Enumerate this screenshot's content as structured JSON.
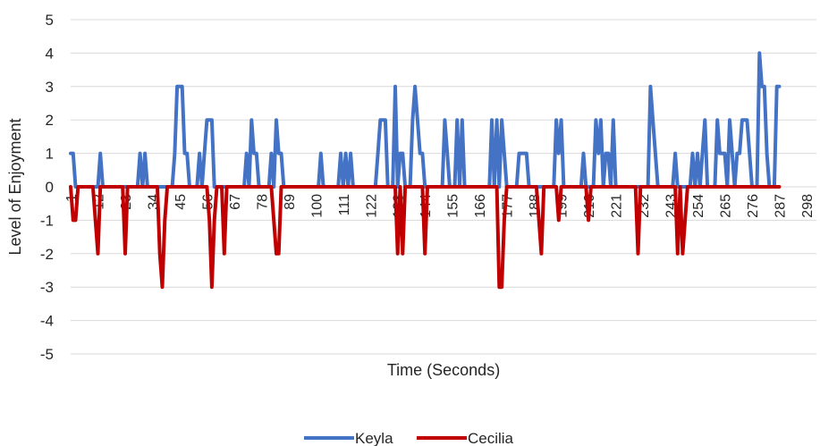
{
  "chart_data": {
    "type": "line",
    "xlabel": "Time (Seconds)",
    "ylabel": "Level of Enjoyment",
    "ylim": [
      -5,
      5
    ],
    "yticks": [
      5,
      4,
      3,
      2,
      1,
      0,
      -1,
      -2,
      -3,
      -4,
      -5
    ],
    "xlim": [
      1,
      302
    ],
    "xtick_labels": [
      1,
      12,
      23,
      34,
      45,
      56,
      67,
      78,
      89,
      100,
      111,
      122,
      133,
      144,
      155,
      166,
      177,
      188,
      199,
      210,
      221,
      232,
      243,
      254,
      265,
      276,
      287,
      298
    ],
    "grid": true,
    "legend_position": "bottom",
    "series": [
      {
        "name": "Keyla",
        "color": "#4472C4",
        "points": [
          [
            1,
            1
          ],
          [
            2,
            1
          ],
          [
            3,
            0
          ],
          [
            12,
            0
          ],
          [
            13,
            1
          ],
          [
            14,
            0
          ],
          [
            28,
            0
          ],
          [
            29,
            1
          ],
          [
            30,
            0
          ],
          [
            31,
            1
          ],
          [
            32,
            0
          ],
          [
            42,
            0
          ],
          [
            43,
            1
          ],
          [
            44,
            3
          ],
          [
            45,
            3
          ],
          [
            46,
            3
          ],
          [
            47,
            1
          ],
          [
            48,
            1
          ],
          [
            49,
            0
          ],
          [
            52,
            0
          ],
          [
            53,
            1
          ],
          [
            54,
            0
          ],
          [
            55,
            1
          ],
          [
            56,
            2
          ],
          [
            57,
            2
          ],
          [
            58,
            2
          ],
          [
            59,
            0
          ],
          [
            71,
            0
          ],
          [
            72,
            1
          ],
          [
            73,
            0
          ],
          [
            74,
            2
          ],
          [
            75,
            1
          ],
          [
            76,
            1
          ],
          [
            77,
            0
          ],
          [
            81,
            0
          ],
          [
            82,
            1
          ],
          [
            83,
            0
          ],
          [
            84,
            2
          ],
          [
            85,
            1
          ],
          [
            86,
            1
          ],
          [
            87,
            0
          ],
          [
            101,
            0
          ],
          [
            102,
            1
          ],
          [
            103,
            0
          ],
          [
            109,
            0
          ],
          [
            110,
            1
          ],
          [
            111,
            0
          ],
          [
            112,
            1
          ],
          [
            113,
            0
          ],
          [
            114,
            1
          ],
          [
            115,
            0
          ],
          [
            124,
            0
          ],
          [
            125,
            1
          ],
          [
            126,
            2
          ],
          [
            127,
            2
          ],
          [
            128,
            2
          ],
          [
            129,
            0
          ],
          [
            131,
            0
          ],
          [
            132,
            3
          ],
          [
            133,
            0
          ],
          [
            134,
            1
          ],
          [
            135,
            1
          ],
          [
            136,
            0
          ],
          [
            138,
            0
          ],
          [
            139,
            2
          ],
          [
            140,
            3
          ],
          [
            141,
            2
          ],
          [
            142,
            1
          ],
          [
            143,
            1
          ],
          [
            144,
            0
          ],
          [
            151,
            0
          ],
          [
            152,
            2
          ],
          [
            153,
            1
          ],
          [
            154,
            0
          ],
          [
            156,
            0
          ],
          [
            157,
            2
          ],
          [
            158,
            0
          ],
          [
            159,
            2
          ],
          [
            160,
            0
          ],
          [
            170,
            0
          ],
          [
            171,
            2
          ],
          [
            172,
            0
          ],
          [
            173,
            2
          ],
          [
            174,
            0
          ],
          [
            175,
            2
          ],
          [
            176,
            1
          ],
          [
            177,
            0
          ],
          [
            181,
            0
          ],
          [
            182,
            1
          ],
          [
            183,
            1
          ],
          [
            184,
            1
          ],
          [
            185,
            1
          ],
          [
            186,
            0
          ],
          [
            196,
            0
          ],
          [
            197,
            2
          ],
          [
            198,
            1
          ],
          [
            199,
            2
          ],
          [
            200,
            0
          ],
          [
            207,
            0
          ],
          [
            208,
            1
          ],
          [
            209,
            0
          ],
          [
            212,
            0
          ],
          [
            213,
            2
          ],
          [
            214,
            1
          ],
          [
            215,
            2
          ],
          [
            216,
            0
          ],
          [
            217,
            1
          ],
          [
            218,
            1
          ],
          [
            219,
            0
          ],
          [
            220,
            2
          ],
          [
            221,
            0
          ],
          [
            234,
            0
          ],
          [
            235,
            3
          ],
          [
            236,
            2
          ],
          [
            237,
            1
          ],
          [
            238,
            0
          ],
          [
            244,
            0
          ],
          [
            245,
            1
          ],
          [
            246,
            0
          ],
          [
            251,
            0
          ],
          [
            252,
            1
          ],
          [
            253,
            0
          ],
          [
            254,
            1
          ],
          [
            255,
            0
          ],
          [
            256,
            1
          ],
          [
            257,
            2
          ],
          [
            258,
            0
          ],
          [
            261,
            0
          ],
          [
            262,
            2
          ],
          [
            263,
            1
          ],
          [
            264,
            1
          ],
          [
            265,
            1
          ],
          [
            266,
            0
          ],
          [
            267,
            2
          ],
          [
            268,
            1
          ],
          [
            269,
            0
          ],
          [
            270,
            1
          ],
          [
            271,
            1
          ],
          [
            272,
            2
          ],
          [
            273,
            2
          ],
          [
            274,
            2
          ],
          [
            275,
            1
          ],
          [
            276,
            0
          ],
          [
            278,
            0
          ],
          [
            279,
            4
          ],
          [
            280,
            3
          ],
          [
            281,
            3
          ],
          [
            282,
            1
          ],
          [
            283,
            0
          ],
          [
            284,
            0
          ],
          [
            285,
            0
          ],
          [
            286,
            3
          ],
          [
            287,
            3
          ]
        ]
      },
      {
        "name": "Cecilia",
        "color": "#C00000",
        "points": [
          [
            1,
            0
          ],
          [
            2,
            -1
          ],
          [
            3,
            -1
          ],
          [
            4,
            0
          ],
          [
            10,
            0
          ],
          [
            11,
            -1
          ],
          [
            12,
            -2
          ],
          [
            13,
            0
          ],
          [
            22,
            0
          ],
          [
            23,
            -2
          ],
          [
            24,
            0
          ],
          [
            36,
            0
          ],
          [
            37,
            -2
          ],
          [
            38,
            -3
          ],
          [
            39,
            -1
          ],
          [
            40,
            0
          ],
          [
            56,
            0
          ],
          [
            57,
            -1
          ],
          [
            58,
            -3
          ],
          [
            59,
            -1
          ],
          [
            60,
            0
          ],
          [
            62,
            0
          ],
          [
            63,
            -2
          ],
          [
            64,
            0
          ],
          [
            82,
            0
          ],
          [
            83,
            -1
          ],
          [
            84,
            -2
          ],
          [
            85,
            -2
          ],
          [
            86,
            0
          ],
          [
            132,
            0
          ],
          [
            133,
            -2
          ],
          [
            134,
            0
          ],
          [
            135,
            -2
          ],
          [
            136,
            0
          ],
          [
            143,
            0
          ],
          [
            144,
            -2
          ],
          [
            145,
            0
          ],
          [
            173,
            0
          ],
          [
            174,
            -3
          ],
          [
            175,
            -3
          ],
          [
            176,
            -1
          ],
          [
            177,
            0
          ],
          [
            189,
            0
          ],
          [
            190,
            -1
          ],
          [
            191,
            -2
          ],
          [
            192,
            0
          ],
          [
            197,
            0
          ],
          [
            198,
            -1
          ],
          [
            199,
            0
          ],
          [
            209,
            0
          ],
          [
            210,
            -1
          ],
          [
            211,
            0
          ],
          [
            229,
            0
          ],
          [
            230,
            -2
          ],
          [
            231,
            0
          ],
          [
            245,
            0
          ],
          [
            246,
            -2
          ],
          [
            247,
            0
          ],
          [
            248,
            -2
          ],
          [
            249,
            -1
          ],
          [
            250,
            0
          ],
          [
            287,
            0
          ]
        ]
      }
    ]
  }
}
